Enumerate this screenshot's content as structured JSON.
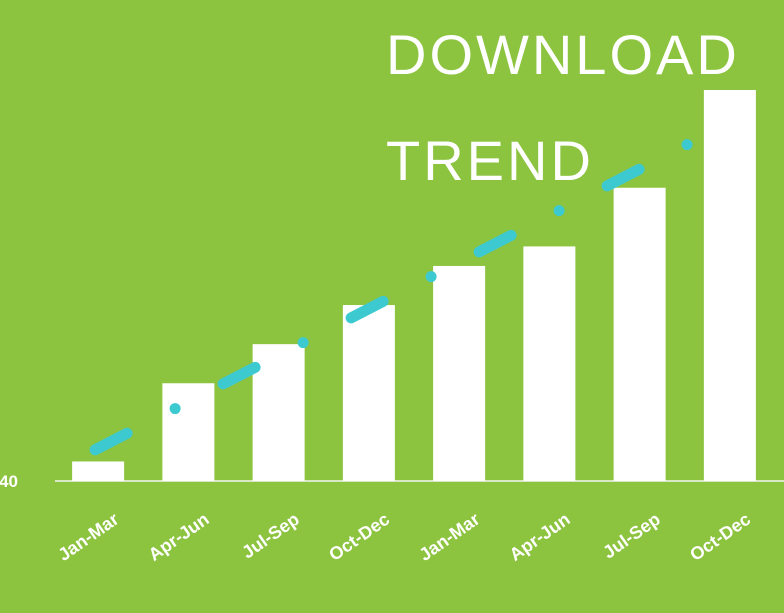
{
  "chart_data": {
    "type": "bar",
    "title": "DOWNLOAD TREND",
    "categories": [
      "Jan-Mar",
      "Apr-Jun",
      "Jul-Sep",
      "Oct-Dec",
      "Jan-Mar",
      "Apr-Jun",
      "Jul-Sep",
      "Oct-Dec"
    ],
    "values": [
      45,
      65,
      75,
      85,
      95,
      100,
      115,
      140
    ],
    "color": "#ffffff",
    "ylim": [
      40,
      140
    ],
    "yticks": [
      40
    ],
    "trendline": true,
    "trendline_color": "#3cc9d0"
  }
}
